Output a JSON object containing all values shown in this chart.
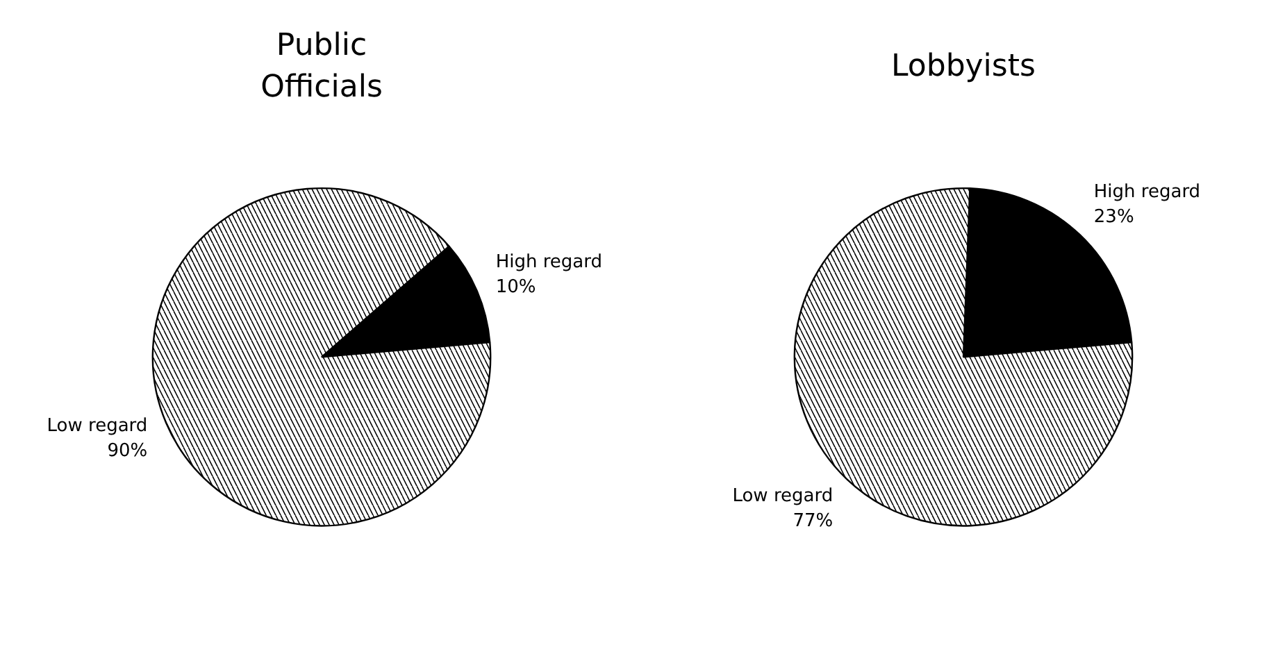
{
  "chart_data": [
    {
      "type": "pie",
      "title": "Public\nOfficials",
      "categories": [
        "High regard",
        "Low regard"
      ],
      "values": [
        10,
        90
      ],
      "colors": [
        "#000000",
        "#ffffff"
      ],
      "value_labels": [
        "10%",
        "90%"
      ]
    },
    {
      "type": "pie",
      "title": "Lobbyists",
      "categories": [
        "High regard",
        "Low regard"
      ],
      "values": [
        23,
        77
      ],
      "colors": [
        "#000000",
        "#ffffff"
      ],
      "value_labels": [
        "23%",
        "77%"
      ]
    }
  ]
}
